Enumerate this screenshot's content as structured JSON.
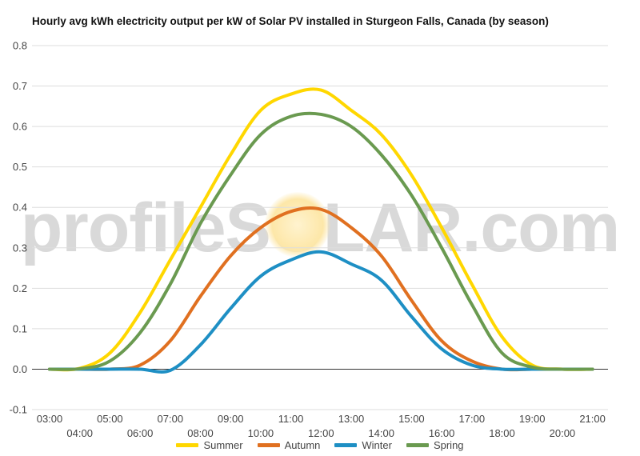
{
  "title": "Hourly avg kWh electricity output per kW of Solar PV installed in Sturgeon Falls, Canada (by season)",
  "watermark": "profileSOLAR.com",
  "chart_data": {
    "type": "line",
    "title": "Hourly avg kWh electricity output per kW of Solar PV installed in Sturgeon Falls, Canada (by season)",
    "xlabel": "",
    "ylabel": "",
    "ylim": [
      -0.1,
      0.8
    ],
    "yticks": [
      "-0.1",
      "0.0",
      "0.1",
      "0.2",
      "0.3",
      "0.4",
      "0.5",
      "0.6",
      "0.7",
      "0.8"
    ],
    "grid": true,
    "legend_position": "bottom",
    "categories": [
      "03:00",
      "04:00",
      "05:00",
      "06:00",
      "07:00",
      "08:00",
      "09:00",
      "10:00",
      "11:00",
      "12:00",
      "13:00",
      "14:00",
      "15:00",
      "16:00",
      "17:00",
      "18:00",
      "19:00",
      "20:00",
      "21:00"
    ],
    "series": [
      {
        "name": "Summer",
        "color": "#ffd700",
        "values": [
          0,
          0.002,
          0.04,
          0.14,
          0.27,
          0.4,
          0.53,
          0.64,
          0.68,
          0.69,
          0.64,
          0.58,
          0.48,
          0.35,
          0.21,
          0.08,
          0.01,
          0,
          0
        ]
      },
      {
        "name": "Autumn",
        "color": "#e07020",
        "values": [
          0,
          0,
          0,
          0.01,
          0.07,
          0.18,
          0.28,
          0.35,
          0.39,
          0.395,
          0.35,
          0.28,
          0.17,
          0.07,
          0.02,
          0,
          0,
          0,
          0
        ]
      },
      {
        "name": "Winter",
        "color": "#1e8fc4",
        "values": [
          0,
          0,
          0,
          0,
          -0.003,
          0.06,
          0.15,
          0.23,
          0.27,
          0.29,
          0.26,
          0.22,
          0.13,
          0.05,
          0.01,
          0,
          0,
          0,
          0
        ]
      },
      {
        "name": "Spring",
        "color": "#6a9a50",
        "values": [
          0,
          0.001,
          0.02,
          0.09,
          0.21,
          0.36,
          0.48,
          0.58,
          0.625,
          0.63,
          0.6,
          0.53,
          0.43,
          0.3,
          0.16,
          0.04,
          0.005,
          0,
          0
        ]
      }
    ]
  }
}
